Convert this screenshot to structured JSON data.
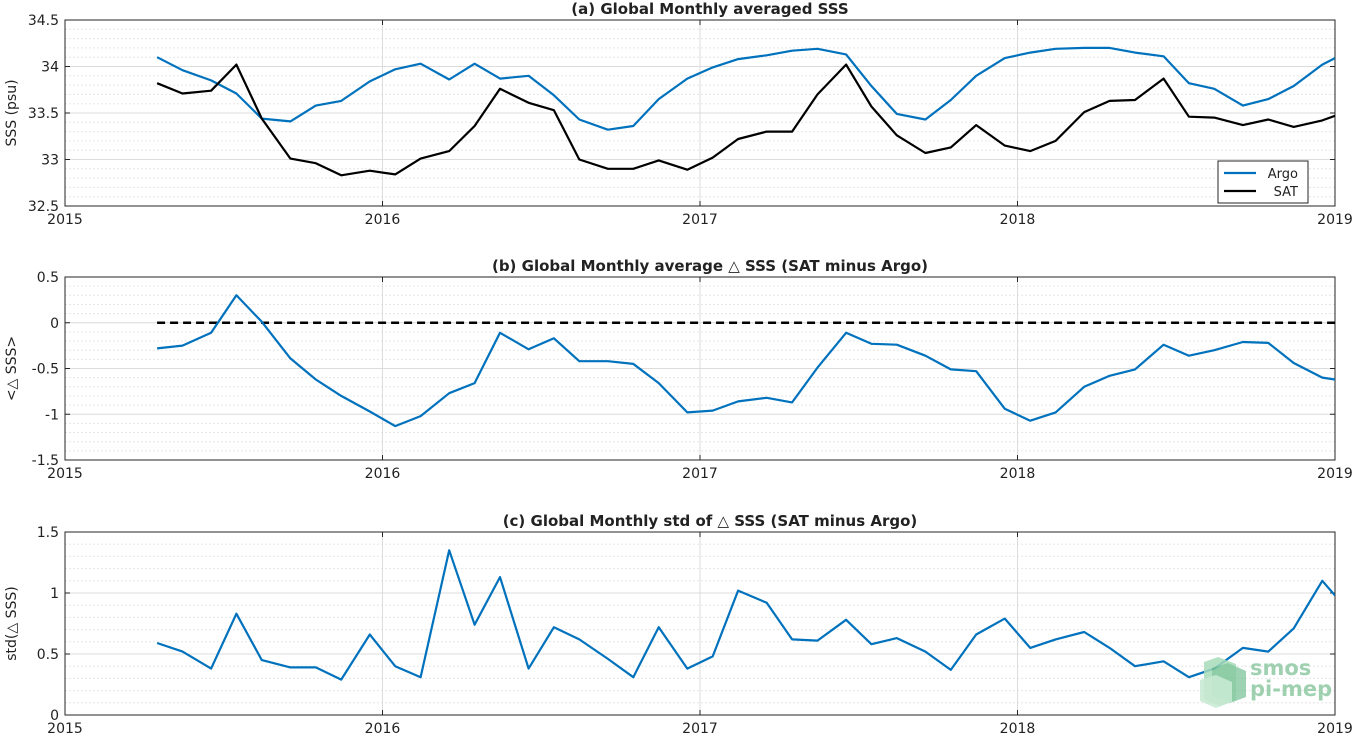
{
  "chart_data": [
    {
      "type": "line",
      "title": "(a) Global Monthly averaged SSS",
      "xlabel": "",
      "ylabel": "SSS (psu)",
      "xlim": [
        "2015",
        "2019"
      ],
      "ylim": [
        32.5,
        34.5
      ],
      "x_ticks": [
        "2015",
        "2016",
        "2017",
        "2018",
        "2019"
      ],
      "y_ticks": [
        "32.5",
        "33",
        "33.5",
        "34",
        "34.5"
      ],
      "grid": true,
      "legend": "bottom-right",
      "x": [
        2015.29,
        2015.37,
        2015.46,
        2015.54,
        2015.62,
        2015.71,
        2015.79,
        2015.87,
        2015.96,
        2016.04,
        2016.12,
        2016.21,
        2016.29,
        2016.37,
        2016.46,
        2016.54,
        2016.62,
        2016.71,
        2016.79,
        2016.87,
        2016.96,
        2017.04,
        2017.12,
        2017.21,
        2017.29,
        2017.37,
        2017.46,
        2017.54,
        2017.62,
        2017.71,
        2017.79,
        2017.87,
        2017.96,
        2018.04,
        2018.12,
        2018.21,
        2018.29,
        2018.37,
        2018.46,
        2018.54,
        2018.62,
        2018.71,
        2018.79,
        2018.87,
        2018.96,
        2019.0
      ],
      "series": [
        {
          "name": "Argo",
          "color": "#0072bd",
          "values": [
            34.1,
            33.96,
            33.85,
            33.71,
            33.44,
            33.41,
            33.58,
            33.63,
            33.84,
            33.97,
            34.03,
            33.86,
            34.03,
            33.87,
            33.9,
            33.69,
            33.43,
            33.32,
            33.36,
            33.65,
            33.87,
            33.99,
            34.08,
            34.12,
            34.17,
            34.19,
            34.13,
            33.79,
            33.49,
            33.43,
            33.64,
            33.9,
            34.09,
            34.15,
            34.19,
            34.2,
            34.2,
            34.15,
            34.11,
            33.82,
            33.76,
            33.58,
            33.65,
            33.79,
            34.02,
            34.09
          ]
        },
        {
          "name": "SAT",
          "color": "#000000",
          "values": [
            33.82,
            33.71,
            33.74,
            34.02,
            33.44,
            33.01,
            32.96,
            32.83,
            32.88,
            32.84,
            33.01,
            33.09,
            33.36,
            33.76,
            33.61,
            33.53,
            33.0,
            32.9,
            32.9,
            32.99,
            32.89,
            33.02,
            33.22,
            33.3,
            33.3,
            33.7,
            34.02,
            33.57,
            33.26,
            33.07,
            33.13,
            33.37,
            33.15,
            33.09,
            33.2,
            33.51,
            33.63,
            33.64,
            33.87,
            33.46,
            33.45,
            33.37,
            33.43,
            33.35,
            33.42,
            33.47
          ]
        }
      ]
    },
    {
      "type": "line",
      "title": "(b) Global Monthly average △ SSS (SAT minus Argo)",
      "xlabel": "",
      "ylabel": "<△ SSS>",
      "xlim": [
        "2015",
        "2019"
      ],
      "ylim": [
        -1.5,
        0.5
      ],
      "x_ticks": [
        "2015",
        "2016",
        "2017",
        "2018",
        "2019"
      ],
      "y_ticks": [
        "-1.5",
        "-1",
        "-0.5",
        "0",
        "0.5"
      ],
      "grid": true,
      "reference_line": {
        "y": 0,
        "style": "dashed",
        "color": "#000000",
        "x_start": 2015.29
      },
      "x": [
        2015.29,
        2015.37,
        2015.46,
        2015.54,
        2015.62,
        2015.71,
        2015.79,
        2015.87,
        2015.96,
        2016.04,
        2016.12,
        2016.21,
        2016.29,
        2016.37,
        2016.46,
        2016.54,
        2016.62,
        2016.71,
        2016.79,
        2016.87,
        2016.96,
        2017.04,
        2017.12,
        2017.21,
        2017.29,
        2017.37,
        2017.46,
        2017.54,
        2017.62,
        2017.71,
        2017.79,
        2017.87,
        2017.96,
        2018.04,
        2018.12,
        2018.21,
        2018.29,
        2018.37,
        2018.46,
        2018.54,
        2018.62,
        2018.71,
        2018.79,
        2018.87,
        2018.96,
        2019.0
      ],
      "series": [
        {
          "name": "",
          "color": "#0072bd",
          "values": [
            -0.28,
            -0.25,
            -0.11,
            0.3,
            0.01,
            -0.39,
            -0.62,
            -0.8,
            -0.97,
            -1.13,
            -1.02,
            -0.77,
            -0.66,
            -0.11,
            -0.29,
            -0.17,
            -0.42,
            -0.42,
            -0.45,
            -0.66,
            -0.98,
            -0.96,
            -0.86,
            -0.82,
            -0.87,
            -0.49,
            -0.11,
            -0.23,
            -0.24,
            -0.36,
            -0.51,
            -0.53,
            -0.94,
            -1.07,
            -0.98,
            -0.7,
            -0.58,
            -0.51,
            -0.24,
            -0.36,
            -0.3,
            -0.21,
            -0.22,
            -0.44,
            -0.6,
            -0.62
          ]
        }
      ]
    },
    {
      "type": "line",
      "title": "(c) Global Monthly std of △ SSS (SAT minus Argo)",
      "xlabel": "",
      "ylabel": "std(△ SSS)",
      "xlim": [
        "2015",
        "2019"
      ],
      "ylim": [
        0,
        1.5
      ],
      "x_ticks": [
        "2015",
        "2016",
        "2017",
        "2018",
        "2019"
      ],
      "y_ticks": [
        "0",
        "0.5",
        "1",
        "1.5"
      ],
      "grid": true,
      "x": [
        2015.29,
        2015.37,
        2015.46,
        2015.54,
        2015.62,
        2015.71,
        2015.79,
        2015.87,
        2015.96,
        2016.04,
        2016.12,
        2016.21,
        2016.29,
        2016.37,
        2016.46,
        2016.54,
        2016.62,
        2016.71,
        2016.79,
        2016.87,
        2016.96,
        2017.04,
        2017.12,
        2017.21,
        2017.29,
        2017.37,
        2017.46,
        2017.54,
        2017.62,
        2017.71,
        2017.79,
        2017.87,
        2017.96,
        2018.04,
        2018.12,
        2018.21,
        2018.29,
        2018.37,
        2018.46,
        2018.54,
        2018.62,
        2018.71,
        2018.79,
        2018.87,
        2018.96,
        2019.0
      ],
      "series": [
        {
          "name": "",
          "color": "#0072bd",
          "values": [
            0.59,
            0.52,
            0.38,
            0.83,
            0.45,
            0.39,
            0.39,
            0.29,
            0.66,
            0.4,
            0.31,
            1.35,
            0.74,
            1.13,
            0.38,
            0.72,
            0.62,
            0.46,
            0.31,
            0.72,
            0.38,
            0.48,
            1.02,
            0.92,
            0.62,
            0.61,
            0.78,
            0.58,
            0.63,
            0.52,
            0.37,
            0.66,
            0.79,
            0.55,
            0.62,
            0.68,
            0.55,
            0.4,
            0.44,
            0.31,
            0.38,
            0.55,
            0.52,
            0.71,
            1.1,
            0.98
          ]
        }
      ]
    }
  ],
  "watermark": {
    "line1": "smos",
    "line2": "pi-mep"
  }
}
